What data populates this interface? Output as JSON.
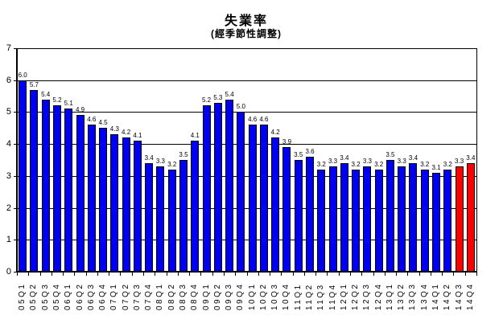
{
  "title": "失業率",
  "subtitle": "(經季節性調整)",
  "axes": {
    "y_tick_labels": [
      "0",
      "1",
      "2",
      "3",
      "4",
      "5",
      "6",
      "7"
    ],
    "y_min": 0,
    "y_max": 7
  },
  "colors": {
    "bar_default": "#0000EE",
    "bar_highlight": "#FF0000",
    "bar_border": "#000000",
    "gridline": "#000000",
    "text": "#000000",
    "background": "#FFFFFF"
  },
  "chart_data": {
    "type": "bar",
    "title": "失業率",
    "subtitle": "(經季節性調整)",
    "xlabel": "",
    "ylabel": "",
    "ylim": [
      0,
      7
    ],
    "yticks": [
      0,
      1,
      2,
      3,
      4,
      5,
      6,
      7
    ],
    "grid": true,
    "legend": "none",
    "data_labels": true,
    "categories": [
      "05Q1",
      "05Q2",
      "05Q3",
      "05Q4",
      "06Q1",
      "06Q2",
      "06Q3",
      "06Q4",
      "07Q1",
      "07Q2",
      "07Q3",
      "07Q4",
      "08Q1",
      "08Q2",
      "08Q3",
      "08Q4",
      "09Q1",
      "09Q2",
      "09Q3",
      "09Q4",
      "10Q1",
      "10Q2",
      "10Q3",
      "10Q4",
      "11Q1",
      "11Q2",
      "11Q3",
      "11Q4",
      "12Q1",
      "12Q2",
      "12Q3",
      "12Q4",
      "13Q1",
      "13Q2",
      "13Q3",
      "13Q4",
      "14Q1",
      "14Q2",
      "14Q3",
      "14Q4"
    ],
    "values": [
      6.0,
      5.7,
      5.4,
      5.2,
      5.1,
      4.9,
      4.6,
      4.5,
      4.3,
      4.2,
      4.1,
      3.4,
      3.3,
      3.2,
      3.5,
      4.1,
      5.2,
      5.3,
      5.4,
      5.0,
      4.6,
      4.6,
      4.2,
      3.9,
      3.5,
      3.6,
      3.2,
      3.3,
      3.4,
      3.2,
      3.3,
      3.2,
      3.5,
      3.3,
      3.4,
      3.2,
      3.1,
      3.2,
      3.3,
      3.4
    ],
    "highlight_indices": [
      38,
      39
    ]
  }
}
